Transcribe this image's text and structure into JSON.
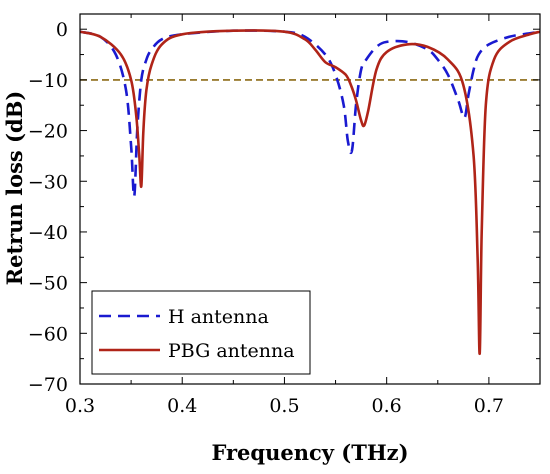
{
  "chart_data": {
    "type": "line",
    "xlabel": "Frequency (THz)",
    "ylabel": "Retrun loss (dB)",
    "xlim": [
      0.3,
      0.75
    ],
    "ylim": [
      -70,
      3
    ],
    "xticks": [
      0.3,
      0.4,
      0.5,
      0.6,
      0.7
    ],
    "xtick_labels": [
      "0.3",
      "0.4",
      "0.5",
      "0.6",
      "0.7"
    ],
    "yticks": [
      0,
      -10,
      -20,
      -30,
      -40,
      -50,
      -60,
      -70
    ],
    "ytick_labels": [
      "0",
      "−10",
      "−20",
      "−30",
      "−40",
      "−50",
      "−60",
      "−70"
    ],
    "grid": false,
    "legend_position": "bottom-left",
    "reference_line": {
      "y": -10,
      "color": "#8B6914",
      "style": "dashed"
    },
    "series": [
      {
        "name": "H antenna",
        "color": "#1a1ad0",
        "style": "dashed",
        "x": [
          0.3,
          0.32,
          0.335,
          0.345,
          0.35,
          0.353,
          0.356,
          0.36,
          0.365,
          0.37,
          0.38,
          0.4,
          0.45,
          0.5,
          0.52,
          0.54,
          0.55,
          0.558,
          0.562,
          0.566,
          0.57,
          0.575,
          0.58,
          0.59,
          0.6,
          0.62,
          0.64,
          0.65,
          0.66,
          0.67,
          0.676,
          0.68,
          0.685,
          0.69,
          0.7,
          0.72,
          0.74,
          0.75
        ],
        "y": [
          -0.5,
          -1.5,
          -5,
          -12,
          -23,
          -33,
          -20,
          -10,
          -6,
          -4,
          -2,
          -1,
          -0.3,
          -0.5,
          -1.5,
          -5,
          -9,
          -15,
          -22,
          -24,
          -15,
          -8,
          -6,
          -3.5,
          -2.5,
          -2.5,
          -4,
          -6,
          -9,
          -14,
          -17.5,
          -13,
          -8,
          -5,
          -3,
          -1.5,
          -0.8,
          -0.5
        ]
      },
      {
        "name": "PBG antenna",
        "color": "#b02418",
        "style": "solid",
        "x": [
          0.3,
          0.32,
          0.34,
          0.35,
          0.355,
          0.358,
          0.36,
          0.362,
          0.365,
          0.37,
          0.38,
          0.4,
          0.45,
          0.5,
          0.52,
          0.53,
          0.54,
          0.55,
          0.56,
          0.565,
          0.57,
          0.575,
          0.578,
          0.582,
          0.59,
          0.6,
          0.62,
          0.64,
          0.66,
          0.675,
          0.685,
          0.689,
          0.691,
          0.693,
          0.697,
          0.705,
          0.72,
          0.74,
          0.75
        ],
        "y": [
          -0.5,
          -1.5,
          -5,
          -10,
          -17,
          -25,
          -31,
          -20,
          -12,
          -7,
          -3,
          -1,
          -0.3,
          -0.5,
          -2,
          -4,
          -6.5,
          -7.5,
          -9,
          -11,
          -14,
          -18,
          -19,
          -16,
          -8,
          -4.5,
          -3,
          -3.5,
          -6,
          -11,
          -25,
          -45,
          -64,
          -40,
          -15,
          -6,
          -2.5,
          -1,
          -0.5
        ]
      }
    ]
  }
}
